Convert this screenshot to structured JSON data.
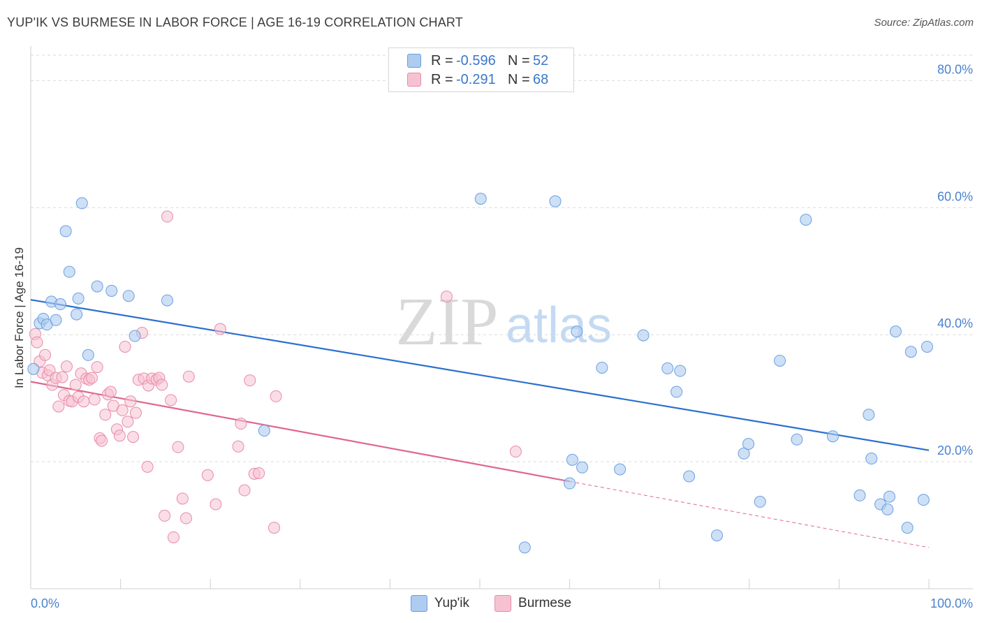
{
  "header": {
    "title": "YUP'IK VS BURMESE IN LABOR FORCE | AGE 16-19 CORRELATION CHART",
    "source": "Source: ZipAtlas.com"
  },
  "legend": {
    "rows": [
      {
        "r_label": "R =",
        "r_value": "-0.596",
        "n_label": "N =",
        "n_value": "52"
      },
      {
        "r_label": "R =",
        "r_value": "-0.291",
        "n_label": "N =",
        "n_value": "68"
      }
    ],
    "bottom": [
      "Yup'ik",
      "Burmese"
    ]
  },
  "watermark": {
    "part1": "ZIP",
    "part2": "atlas"
  },
  "colors": {
    "yupik_fill": "#aecbf0",
    "yupik_stroke": "#6a9fe0",
    "yupik_line": "#2b6fcf",
    "burmese_fill": "#f6c2d2",
    "burmese_stroke": "#e88aaa",
    "burmese_line": "#e06690",
    "tick_label": "#4a82cf",
    "grid": "#d9d9d9"
  },
  "chart_data": {
    "type": "scatter",
    "title": "YUP'IK VS BURMESE IN LABOR FORCE | AGE 16-19 CORRELATION CHART",
    "xlabel": "",
    "ylabel": "In Labor Force | Age 16-19",
    "xlim": [
      0,
      100
    ],
    "ylim": [
      0,
      84
    ],
    "x_tick_labels": [
      {
        "value": 0,
        "label": "0.0%"
      },
      {
        "value": 100,
        "label": "100.0%"
      }
    ],
    "y_ticks": [
      {
        "value": 20,
        "label": "20.0%"
      },
      {
        "value": 40,
        "label": "40.0%"
      },
      {
        "value": 60,
        "label": "60.0%"
      },
      {
        "value": 80,
        "label": "80.0%"
      }
    ],
    "grid": true,
    "legend_placement": "top-center",
    "series": [
      {
        "name": "Yup'ik",
        "r": -0.596,
        "n": 52,
        "trend": {
          "x": [
            0,
            100
          ],
          "y": [
            45.5,
            21.8
          ]
        },
        "points": [
          [
            0.3,
            34.6
          ],
          [
            1.0,
            41.8
          ],
          [
            1.4,
            42.5
          ],
          [
            1.8,
            41.6
          ],
          [
            2.3,
            45.2
          ],
          [
            2.8,
            42.3
          ],
          [
            3.3,
            44.8
          ],
          [
            3.9,
            56.3
          ],
          [
            4.3,
            49.9
          ],
          [
            5.1,
            43.2
          ],
          [
            5.3,
            45.7
          ],
          [
            5.7,
            60.7
          ],
          [
            6.4,
            36.8
          ],
          [
            7.4,
            47.6
          ],
          [
            9.0,
            46.9
          ],
          [
            10.9,
            46.1
          ],
          [
            11.6,
            39.8
          ],
          [
            15.2,
            45.4
          ],
          [
            26.0,
            24.9
          ],
          [
            50.1,
            61.4
          ],
          [
            55.0,
            6.5
          ],
          [
            58.4,
            61.0
          ],
          [
            60.0,
            16.6
          ],
          [
            60.3,
            20.3
          ],
          [
            60.8,
            40.5
          ],
          [
            61.4,
            19.1
          ],
          [
            63.6,
            34.8
          ],
          [
            65.6,
            18.8
          ],
          [
            68.2,
            39.9
          ],
          [
            70.9,
            34.7
          ],
          [
            71.9,
            31.0
          ],
          [
            72.3,
            34.3
          ],
          [
            73.3,
            17.7
          ],
          [
            76.4,
            8.4
          ],
          [
            79.4,
            21.3
          ],
          [
            79.9,
            22.8
          ],
          [
            81.2,
            13.7
          ],
          [
            83.4,
            35.9
          ],
          [
            85.3,
            23.5
          ],
          [
            86.3,
            58.1
          ],
          [
            89.3,
            24.0
          ],
          [
            92.3,
            14.7
          ],
          [
            93.3,
            27.4
          ],
          [
            93.6,
            20.5
          ],
          [
            94.6,
            13.3
          ],
          [
            95.4,
            12.5
          ],
          [
            95.6,
            14.5
          ],
          [
            96.3,
            40.5
          ],
          [
            97.6,
            9.6
          ],
          [
            98.0,
            37.3
          ],
          [
            99.4,
            14.0
          ],
          [
            99.8,
            38.1
          ]
        ]
      },
      {
        "name": "Burmese",
        "r": -0.291,
        "n": 68,
        "trend": {
          "x": [
            0,
            60
          ],
          "y": [
            32.6,
            16.9
          ]
        },
        "trend_extension": {
          "x": [
            60,
            100
          ],
          "y": [
            16.9,
            6.5
          ]
        },
        "points": [
          [
            0.5,
            40.1
          ],
          [
            0.7,
            38.8
          ],
          [
            1.0,
            35.8
          ],
          [
            1.3,
            34.0
          ],
          [
            1.6,
            36.8
          ],
          [
            1.9,
            33.6
          ],
          [
            2.1,
            34.4
          ],
          [
            2.4,
            32.1
          ],
          [
            2.8,
            33.2
          ],
          [
            3.1,
            28.7
          ],
          [
            3.5,
            33.3
          ],
          [
            3.7,
            30.5
          ],
          [
            4.0,
            35.0
          ],
          [
            4.3,
            29.6
          ],
          [
            4.6,
            29.5
          ],
          [
            5.0,
            32.1
          ],
          [
            5.3,
            30.2
          ],
          [
            5.6,
            33.9
          ],
          [
            5.9,
            29.5
          ],
          [
            6.2,
            33.1
          ],
          [
            6.5,
            32.9
          ],
          [
            6.8,
            33.2
          ],
          [
            7.1,
            29.8
          ],
          [
            7.4,
            34.9
          ],
          [
            7.7,
            23.7
          ],
          [
            7.9,
            23.3
          ],
          [
            8.3,
            27.4
          ],
          [
            8.6,
            30.6
          ],
          [
            8.9,
            31.0
          ],
          [
            9.2,
            28.8
          ],
          [
            9.6,
            25.1
          ],
          [
            9.9,
            24.1
          ],
          [
            10.2,
            28.1
          ],
          [
            10.5,
            38.1
          ],
          [
            10.8,
            26.3
          ],
          [
            11.1,
            29.5
          ],
          [
            11.4,
            23.9
          ],
          [
            11.7,
            27.7
          ],
          [
            12.0,
            32.9
          ],
          [
            12.4,
            40.3
          ],
          [
            12.6,
            33.1
          ],
          [
            13.0,
            19.2
          ],
          [
            13.1,
            32.0
          ],
          [
            13.5,
            33.1
          ],
          [
            14.0,
            32.9
          ],
          [
            14.3,
            33.2
          ],
          [
            14.6,
            32.1
          ],
          [
            14.9,
            11.5
          ],
          [
            15.2,
            58.6
          ],
          [
            15.6,
            29.7
          ],
          [
            15.9,
            8.1
          ],
          [
            16.4,
            22.3
          ],
          [
            16.9,
            14.2
          ],
          [
            17.3,
            11.1
          ],
          [
            17.6,
            33.4
          ],
          [
            19.7,
            17.9
          ],
          [
            20.6,
            13.3
          ],
          [
            21.1,
            40.9
          ],
          [
            23.1,
            22.4
          ],
          [
            23.4,
            26.0
          ],
          [
            23.8,
            15.5
          ],
          [
            24.4,
            32.8
          ],
          [
            24.9,
            18.1
          ],
          [
            25.4,
            18.2
          ],
          [
            27.1,
            9.6
          ],
          [
            27.3,
            30.3
          ],
          [
            46.3,
            46.0
          ],
          [
            54.0,
            21.6
          ]
        ]
      }
    ]
  }
}
